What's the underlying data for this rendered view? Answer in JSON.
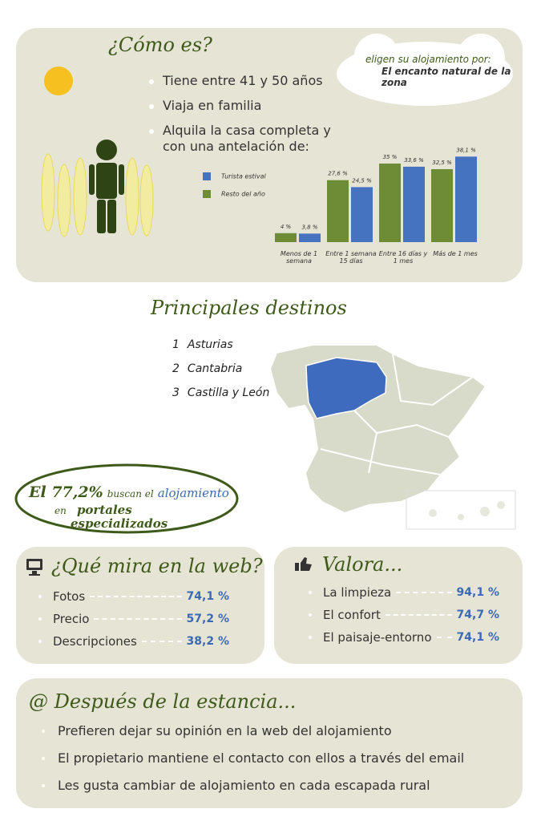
{
  "profile": {
    "title": "¿Cómo es?",
    "bullets": [
      "Tiene entre 41 y 50 años",
      "Viaja en familia",
      "Alquila la casa completa y con una antelación de:"
    ]
  },
  "cloud": {
    "intro": "eligen su alojamiento por:",
    "answer": "El encanto natural de la zona"
  },
  "chart_data": {
    "type": "bar",
    "categories": [
      "Menos de 1 semana",
      "Entre 1 semana 15 días",
      "Entre 16 días y 1 mes",
      "Más de 1 mes"
    ],
    "series": [
      {
        "name": "Turista estival",
        "color": "#4673c0",
        "values": [
          3.8,
          24.5,
          33.6,
          38.1
        ],
        "value_labels": [
          "3,8 %",
          "24,5 %",
          "33,6 %",
          "38,1 %"
        ]
      },
      {
        "name": "Resto del año",
        "color": "#6e8c35",
        "values": [
          4,
          27.6,
          35,
          32.5
        ],
        "value_labels": [
          "4 %",
          "27,6 %",
          "35 %",
          "32,5 %"
        ]
      }
    ],
    "ylim": [
      0,
      40
    ]
  },
  "destinations": {
    "title": "Principales destinos",
    "items": [
      {
        "rank": "1",
        "name": "Asturias"
      },
      {
        "rank": "2",
        "name": "Cantabria"
      },
      {
        "rank": "3",
        "name": "Castilla y León"
      }
    ]
  },
  "highlight": {
    "figure": "El 77,2%",
    "text1": "buscan el",
    "text2": "alojamiento",
    "text3": "en",
    "text4": "portales",
    "text5": "especializados"
  },
  "web": {
    "title": "¿Qué mira en la web?",
    "items": [
      {
        "label": "Fotos",
        "value": "74,1 %"
      },
      {
        "label": "Precio",
        "value": "57,2 %"
      },
      {
        "label": "Descripciones",
        "value": "38,2 %"
      }
    ]
  },
  "valora": {
    "title": "Valora...",
    "items": [
      {
        "label": "La limpieza",
        "value": "94,1 %"
      },
      {
        "label": "El confort",
        "value": "74,7 %"
      },
      {
        "label": "El paisaje-entorno",
        "value": "74,1 %"
      }
    ]
  },
  "after": {
    "title": "@ Después de la estancia...",
    "items": [
      "Prefieren dejar su opinión en la web del alojamiento",
      "El propietario mantiene el contacto con ellos a través del email",
      "Les gusta cambiar de alojamiento en cada escapada rural"
    ]
  }
}
